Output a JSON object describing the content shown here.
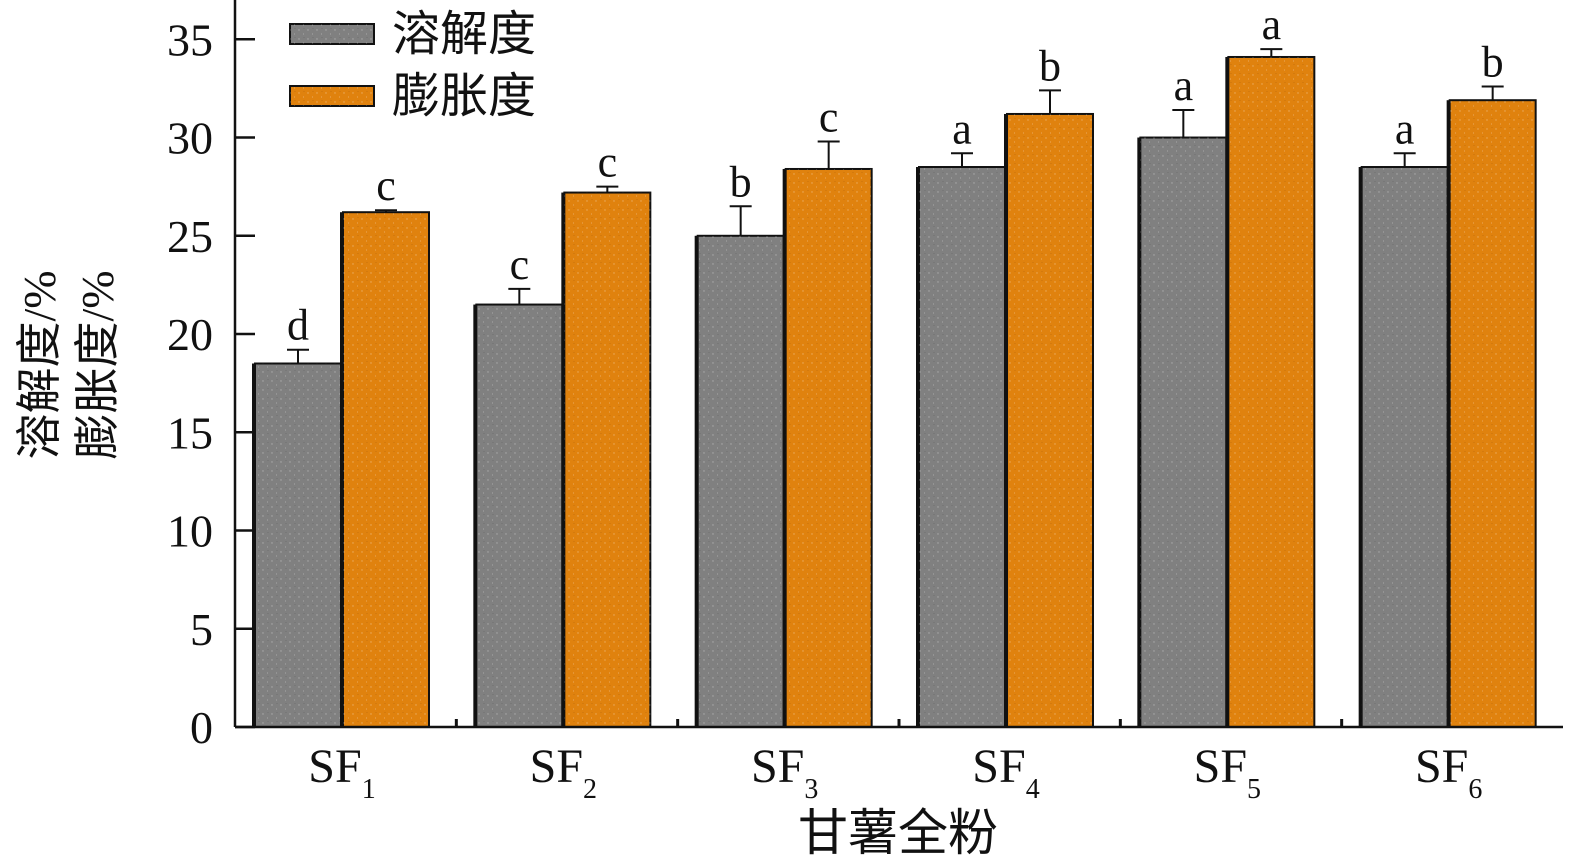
{
  "chart_data": {
    "type": "bar",
    "xlabel": "甘薯全粉",
    "ylabel_line1": "溶解度/%",
    "ylabel_line2": "膨胀度/%",
    "ylim": [
      0,
      37
    ],
    "yticks": [
      0,
      5,
      10,
      15,
      20,
      25,
      30,
      35
    ],
    "grid": false,
    "legend_position": "top-left",
    "categories": [
      {
        "main": "SF",
        "sub": "1"
      },
      {
        "main": "SF",
        "sub": "2"
      },
      {
        "main": "SF",
        "sub": "3"
      },
      {
        "main": "SF",
        "sub": "4"
      },
      {
        "main": "SF",
        "sub": "5"
      },
      {
        "main": "SF",
        "sub": "6"
      }
    ],
    "series": [
      {
        "name": "溶解度",
        "color": "#808080",
        "values": [
          18.5,
          21.5,
          25.0,
          28.5,
          30.0,
          28.5
        ],
        "errors": [
          0.7,
          0.8,
          1.5,
          0.7,
          1.4,
          0.7
        ],
        "labels": [
          "d",
          "c",
          "b",
          "a",
          "a",
          "a"
        ]
      },
      {
        "name": "膨胀度",
        "color": "#E0820E",
        "values": [
          26.2,
          27.2,
          28.4,
          31.2,
          34.1,
          31.9
        ],
        "errors": [
          0.1,
          0.3,
          1.4,
          1.2,
          0.4,
          0.7
        ],
        "labels": [
          "c",
          "c",
          "c",
          "b",
          "a",
          "b"
        ]
      }
    ]
  }
}
